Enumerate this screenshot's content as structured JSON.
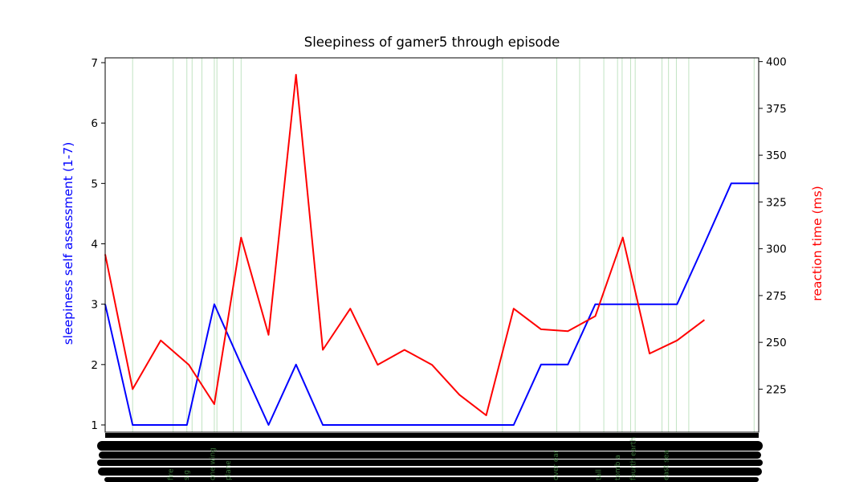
{
  "chart_data": {
    "type": "line",
    "title": "Sleepiness of gamer5 through episode",
    "ylabel_left": "sleepiness self assessment (1-7)",
    "ylabel_right": "reaction time (ms)",
    "ylim_left": [
      0.88,
      7.08
    ],
    "ylim_right": [
      202,
      402
    ],
    "yticks_left": [
      "1",
      "2",
      "3",
      "4",
      "5",
      "6",
      "7"
    ],
    "yticks_right": [
      "225",
      "250",
      "275",
      "300",
      "325",
      "350",
      "375",
      "400"
    ],
    "x_range": [
      0,
      100
    ],
    "grid": false,
    "colors": {
      "sleepiness": "#0000ff",
      "reaction": "#ff0000",
      "events": "#4caf50"
    },
    "series": [
      {
        "axis": "left",
        "x": [
          0,
          4.2,
          12.5,
          16.7,
          20.8,
          25.0,
          29.2,
          33.3,
          37.5,
          41.7,
          45.8,
          50.0,
          54.2,
          58.3,
          62.5,
          66.7,
          70.8,
          75.0,
          79.2,
          83.3,
          87.5,
          91.7,
          95.8,
          100
        ],
        "values": [
          3,
          1,
          1,
          3,
          2,
          1,
          2,
          1,
          1,
          1,
          1,
          1,
          1,
          1,
          1,
          2,
          2,
          3,
          3,
          3,
          3,
          4,
          5,
          5
        ]
      },
      {
        "axis": "right",
        "x": [
          0,
          4.2,
          8.5,
          12.8,
          16.7,
          20.8,
          25.0,
          29.2,
          33.3,
          37.5,
          41.7,
          45.8,
          50.0,
          54.2,
          58.3,
          62.5,
          66.7,
          70.8,
          75.0,
          79.2,
          83.3,
          87.5,
          91.7
        ],
        "values": [
          297,
          225,
          251,
          238,
          217,
          306,
          254,
          393,
          246,
          268,
          238,
          246,
          238,
          222,
          211,
          268,
          257,
          256,
          264,
          306,
          244,
          251,
          262
        ]
      }
    ],
    "event_lines_x": [
      4.2,
      10.4,
      12.5,
      13.3,
      14.8,
      16.7,
      17.1,
      19.6,
      20.8,
      60.8,
      69.1,
      72.6,
      76.3,
      78.4,
      79.1,
      80.4,
      81.1,
      85.2,
      86.2,
      87.4,
      89.3,
      99.3
    ],
    "event_labels": [
      {
        "x": 10.0,
        "text": "fire"
      },
      {
        "x": 12.4,
        "text": "sig"
      },
      {
        "x": 16.4,
        "text": "one wing"
      },
      {
        "x": 18.8,
        "text": "plane"
      },
      {
        "x": 68.9,
        "text": "over ear"
      },
      {
        "x": 75.5,
        "text": "tall"
      },
      {
        "x": 78.4,
        "text": "tomb a"
      },
      {
        "x": 80.8,
        "text": "fourth earth"
      },
      {
        "x": 85.8,
        "text": "east sea"
      }
    ]
  }
}
